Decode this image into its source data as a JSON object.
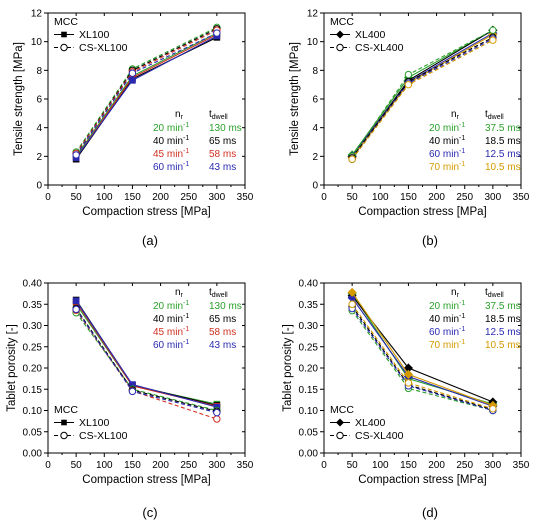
{
  "chart_data": [
    {
      "type": "line",
      "panel_label": "(a)",
      "xlabel": "Compaction stress [MPa]",
      "ylabel": "Tensile strength [MPa]",
      "xlim": [
        0,
        350
      ],
      "ylim": [
        0,
        12
      ],
      "xticks": [
        0,
        50,
        100,
        150,
        200,
        250,
        300,
        350
      ],
      "yticks": [
        0,
        2,
        4,
        6,
        8,
        10,
        12
      ],
      "legend": {
        "title": "MCC",
        "position": "top-left",
        "entries": [
          {
            "label": "XL100",
            "style": "solid",
            "marker": "square-filled"
          },
          {
            "label": "CS-XL100",
            "style": "dashed",
            "marker": "circle-open"
          }
        ]
      },
      "speed_table": {
        "position": "bottom-right",
        "header_n": "n",
        "header_n_sub": "r",
        "header_t": "t",
        "header_t_sub": "dwell",
        "rows": [
          {
            "speed": "20 min",
            "sup": "-1",
            "dwell": "130 ms",
            "color": "#2aa02a"
          },
          {
            "speed": "40 min",
            "sup": "-1",
            "dwell": "65 ms",
            "color": "#000000"
          },
          {
            "speed": "45 min",
            "sup": "-1",
            "dwell": "58 ms",
            "color": "#d03020"
          },
          {
            "speed": "60 min",
            "sup": "-1",
            "dwell": "43 ms",
            "color": "#2a2ab0"
          }
        ]
      },
      "series": [
        {
          "group": "XL100",
          "speed": "20 min-1",
          "color": "#2aa02a",
          "style": "solid",
          "marker": "square-filled",
          "x": [
            50,
            150,
            300
          ],
          "y": [
            2.0,
            7.6,
            10.6
          ]
        },
        {
          "group": "XL100",
          "speed": "40 min-1",
          "color": "#000000",
          "style": "solid",
          "marker": "square-filled",
          "x": [
            50,
            150,
            300
          ],
          "y": [
            1.8,
            7.4,
            10.3
          ]
        },
        {
          "group": "XL100",
          "speed": "45 min-1",
          "color": "#d03020",
          "style": "solid",
          "marker": "square-filled",
          "x": [
            50,
            150,
            300
          ],
          "y": [
            1.9,
            7.5,
            10.5
          ]
        },
        {
          "group": "XL100",
          "speed": "60 min-1",
          "color": "#2a2ab0",
          "style": "solid",
          "marker": "square-filled",
          "x": [
            50,
            150,
            300
          ],
          "y": [
            1.9,
            7.3,
            10.4
          ]
        },
        {
          "group": "CS-XL100",
          "speed": "20 min-1",
          "color": "#2aa02a",
          "style": "dashed",
          "marker": "circle-open",
          "x": [
            50,
            150,
            300
          ],
          "y": [
            2.3,
            8.1,
            11.0
          ]
        },
        {
          "group": "CS-XL100",
          "speed": "40 min-1",
          "color": "#000000",
          "style": "dashed",
          "marker": "circle-open",
          "x": [
            50,
            150,
            300
          ],
          "y": [
            2.2,
            8.0,
            10.9
          ]
        },
        {
          "group": "CS-XL100",
          "speed": "45 min-1",
          "color": "#d03020",
          "style": "dashed",
          "marker": "circle-open",
          "x": [
            50,
            150,
            300
          ],
          "y": [
            2.2,
            7.9,
            10.8
          ]
        },
        {
          "group": "CS-XL100",
          "speed": "60 min-1",
          "color": "#2a2ab0",
          "style": "dashed",
          "marker": "circle-open",
          "x": [
            50,
            150,
            300
          ],
          "y": [
            2.1,
            7.8,
            10.6
          ]
        }
      ]
    },
    {
      "type": "line",
      "panel_label": "(b)",
      "xlabel": "Compaction stress [MPa]",
      "ylabel": "Tensile strength [MPa]",
      "xlim": [
        0,
        350
      ],
      "ylim": [
        0,
        12
      ],
      "xticks": [
        0,
        50,
        100,
        150,
        200,
        250,
        300,
        350
      ],
      "yticks": [
        0,
        2,
        4,
        6,
        8,
        10,
        12
      ],
      "legend": {
        "title": "MCC",
        "position": "top-left",
        "entries": [
          {
            "label": "XL400",
            "style": "solid",
            "marker": "diamond-filled"
          },
          {
            "label": "CS-XL400",
            "style": "dashed",
            "marker": "circle-open"
          }
        ]
      },
      "speed_table": {
        "position": "bottom-right",
        "header_n": "n",
        "header_n_sub": "r",
        "header_t": "t",
        "header_t_sub": "dwell",
        "rows": [
          {
            "speed": "20 min",
            "sup": "-1",
            "dwell": "37.5 ms",
            "color": "#2aa02a"
          },
          {
            "speed": "40 min",
            "sup": "-1",
            "dwell": "18.5 ms",
            "color": "#000000"
          },
          {
            "speed": "60 min",
            "sup": "-1",
            "dwell": "12.5 ms",
            "color": "#2a2ab0"
          },
          {
            "speed": "70 min",
            "sup": "-1",
            "dwell": "10.5 ms",
            "color": "#d49a00"
          }
        ]
      },
      "series": [
        {
          "group": "XL400",
          "speed": "20 min-1",
          "color": "#2aa02a",
          "style": "solid",
          "marker": "diamond-filled",
          "x": [
            50,
            150,
            300
          ],
          "y": [
            2.1,
            7.5,
            10.8
          ]
        },
        {
          "group": "XL400",
          "speed": "40 min-1",
          "color": "#000000",
          "style": "solid",
          "marker": "diamond-filled",
          "x": [
            50,
            150,
            300
          ],
          "y": [
            2.0,
            7.3,
            10.8
          ]
        },
        {
          "group": "XL400",
          "speed": "60 min-1",
          "color": "#2a2ab0",
          "style": "solid",
          "marker": "diamond-filled",
          "x": [
            50,
            150,
            300
          ],
          "y": [
            2.0,
            7.2,
            10.6
          ]
        },
        {
          "group": "XL400",
          "speed": "70 min-1",
          "color": "#d49a00",
          "style": "solid",
          "marker": "diamond-filled",
          "x": [
            50,
            150,
            300
          ],
          "y": [
            1.9,
            7.1,
            10.5
          ]
        },
        {
          "group": "CS-XL400",
          "speed": "20 min-1",
          "color": "#2aa02a",
          "style": "dashed",
          "marker": "circle-open",
          "x": [
            50,
            150,
            300
          ],
          "y": [
            2.0,
            7.7,
            10.8
          ]
        },
        {
          "group": "CS-XL400",
          "speed": "40 min-1",
          "color": "#000000",
          "style": "dashed",
          "marker": "circle-open",
          "x": [
            50,
            150,
            300
          ],
          "y": [
            1.9,
            7.2,
            10.3
          ]
        },
        {
          "group": "CS-XL400",
          "speed": "60 min-1",
          "color": "#2a2ab0",
          "style": "dashed",
          "marker": "circle-open",
          "x": [
            50,
            150,
            300
          ],
          "y": [
            1.8,
            7.1,
            10.2
          ]
        },
        {
          "group": "CS-XL400",
          "speed": "70 min-1",
          "color": "#d49a00",
          "style": "dashed",
          "marker": "circle-open",
          "x": [
            50,
            150,
            300
          ],
          "y": [
            1.8,
            7.0,
            10.1
          ]
        }
      ]
    },
    {
      "type": "line",
      "panel_label": "(c)",
      "xlabel": "Compaction stress [MPa]",
      "ylabel": "Tablet porosity [-]",
      "xlim": [
        0,
        350
      ],
      "ylim": [
        0,
        0.4
      ],
      "xticks": [
        0,
        50,
        100,
        150,
        200,
        250,
        300,
        350
      ],
      "yticks": [
        0.0,
        0.05,
        0.1,
        0.15,
        0.2,
        0.25,
        0.3,
        0.35,
        0.4
      ],
      "ytick_labels": [
        "0.00",
        "0.05",
        "0.10",
        "0.15",
        "0.20",
        "0.25",
        "0.30",
        "0.35",
        "0.40"
      ],
      "legend": {
        "title": "MCC",
        "position": "bottom-left",
        "entries": [
          {
            "label": "XL100",
            "style": "solid",
            "marker": "square-filled"
          },
          {
            "label": "CS-XL100",
            "style": "dashed",
            "marker": "circle-open"
          }
        ]
      },
      "speed_table": {
        "position": "top-right",
        "header_n": "n",
        "header_n_sub": "r",
        "header_t": "t",
        "header_t_sub": "dwell",
        "rows": [
          {
            "speed": "20 min",
            "sup": "-1",
            "dwell": "130 ms",
            "color": "#2aa02a"
          },
          {
            "speed": "40 min",
            "sup": "-1",
            "dwell": "65 ms",
            "color": "#000000"
          },
          {
            "speed": "45 min",
            "sup": "-1",
            "dwell": "58 ms",
            "color": "#d03020"
          },
          {
            "speed": "60 min",
            "sup": "-1",
            "dwell": "43 ms",
            "color": "#2a2ab0"
          }
        ]
      },
      "series": [
        {
          "group": "XL100",
          "speed": "20 min-1",
          "color": "#2aa02a",
          "style": "solid",
          "marker": "square-filled",
          "x": [
            50,
            150,
            300
          ],
          "y": [
            0.35,
            0.158,
            0.115
          ]
        },
        {
          "group": "XL100",
          "speed": "40 min-1",
          "color": "#000000",
          "style": "solid",
          "marker": "square-filled",
          "x": [
            50,
            150,
            300
          ],
          "y": [
            0.36,
            0.16,
            0.112
          ]
        },
        {
          "group": "XL100",
          "speed": "45 min-1",
          "color": "#d03020",
          "style": "solid",
          "marker": "square-filled",
          "x": [
            50,
            150,
            300
          ],
          "y": [
            0.355,
            0.158,
            0.11
          ]
        },
        {
          "group": "XL100",
          "speed": "60 min-1",
          "color": "#2a2ab0",
          "style": "solid",
          "marker": "square-filled",
          "x": [
            50,
            150,
            300
          ],
          "y": [
            0.358,
            0.161,
            0.108
          ]
        },
        {
          "group": "CS-XL100",
          "speed": "20 min-1",
          "color": "#2aa02a",
          "style": "dashed",
          "marker": "circle-open",
          "x": [
            50,
            150,
            300
          ],
          "y": [
            0.33,
            0.15,
            0.1
          ]
        },
        {
          "group": "CS-XL100",
          "speed": "40 min-1",
          "color": "#000000",
          "style": "dashed",
          "marker": "circle-open",
          "x": [
            50,
            150,
            300
          ],
          "y": [
            0.34,
            0.148,
            0.098
          ]
        },
        {
          "group": "CS-XL100",
          "speed": "45 min-1",
          "color": "#d03020",
          "style": "dashed",
          "marker": "circle-open",
          "x": [
            50,
            150,
            300
          ],
          "y": [
            0.336,
            0.146,
            0.08
          ]
        },
        {
          "group": "CS-XL100",
          "speed": "60 min-1",
          "color": "#2a2ab0",
          "style": "dashed",
          "marker": "circle-open",
          "x": [
            50,
            150,
            300
          ],
          "y": [
            0.338,
            0.145,
            0.095
          ]
        }
      ]
    },
    {
      "type": "line",
      "panel_label": "(d)",
      "xlabel": "Compaction stress [MPa]",
      "ylabel": "Tablet porosity [-]",
      "xlim": [
        0,
        350
      ],
      "ylim": [
        0,
        0.4
      ],
      "xticks": [
        0,
        50,
        100,
        150,
        200,
        250,
        300,
        350
      ],
      "yticks": [
        0.0,
        0.05,
        0.1,
        0.15,
        0.2,
        0.25,
        0.3,
        0.35,
        0.4
      ],
      "ytick_labels": [
        "0.00",
        "0.05",
        "0.10",
        "0.15",
        "0.20",
        "0.25",
        "0.30",
        "0.35",
        "0.40"
      ],
      "legend": {
        "title": "MCC",
        "position": "bottom-left",
        "entries": [
          {
            "label": "XL400",
            "style": "solid",
            "marker": "diamond-filled"
          },
          {
            "label": "CS-XL400",
            "style": "dashed",
            "marker": "circle-open"
          }
        ]
      },
      "speed_table": {
        "position": "top-right",
        "header_n": "n",
        "header_n_sub": "r",
        "header_t": "t",
        "header_t_sub": "dwell",
        "rows": [
          {
            "speed": "20 min",
            "sup": "-1",
            "dwell": "37.5 ms",
            "color": "#2aa02a"
          },
          {
            "speed": "40 min",
            "sup": "-1",
            "dwell": "18.5 ms",
            "color": "#000000"
          },
          {
            "speed": "60 min",
            "sup": "-1",
            "dwell": "12.5 ms",
            "color": "#2a2ab0"
          },
          {
            "speed": "70 min",
            "sup": "-1",
            "dwell": "10.5 ms",
            "color": "#d49a00"
          }
        ]
      },
      "series": [
        {
          "group": "XL400",
          "speed": "20 min-1",
          "color": "#2aa02a",
          "style": "solid",
          "marker": "diamond-filled",
          "x": [
            50,
            150,
            300
          ],
          "y": [
            0.375,
            0.175,
            0.115
          ]
        },
        {
          "group": "XL400",
          "speed": "40 min-1",
          "color": "#000000",
          "style": "solid",
          "marker": "diamond-filled",
          "x": [
            50,
            150,
            300
          ],
          "y": [
            0.37,
            0.2,
            0.12
          ]
        },
        {
          "group": "XL400",
          "speed": "60 min-1",
          "color": "#2a2ab0",
          "style": "solid",
          "marker": "diamond-filled",
          "x": [
            50,
            150,
            300
          ],
          "y": [
            0.365,
            0.18,
            0.11
          ]
        },
        {
          "group": "XL400",
          "speed": "70 min-1",
          "color": "#d49a00",
          "style": "solid",
          "marker": "diamond-filled",
          "x": [
            50,
            150,
            300
          ],
          "y": [
            0.378,
            0.185,
            0.112
          ]
        },
        {
          "group": "CS-XL400",
          "speed": "20 min-1",
          "color": "#2aa02a",
          "style": "dashed",
          "marker": "circle-open",
          "x": [
            50,
            150,
            300
          ],
          "y": [
            0.335,
            0.152,
            0.1
          ]
        },
        {
          "group": "CS-XL400",
          "speed": "40 min-1",
          "color": "#000000",
          "style": "dashed",
          "marker": "circle-open",
          "x": [
            50,
            150,
            300
          ],
          "y": [
            0.345,
            0.16,
            0.102
          ]
        },
        {
          "group": "CS-XL400",
          "speed": "60 min-1",
          "color": "#2a2ab0",
          "style": "dashed",
          "marker": "circle-open",
          "x": [
            50,
            150,
            300
          ],
          "y": [
            0.34,
            0.158,
            0.1
          ]
        },
        {
          "group": "CS-XL400",
          "speed": "70 min-1",
          "color": "#d49a00",
          "style": "dashed",
          "marker": "circle-open",
          "x": [
            50,
            150,
            300
          ],
          "y": [
            0.35,
            0.165,
            0.104
          ]
        }
      ]
    }
  ]
}
